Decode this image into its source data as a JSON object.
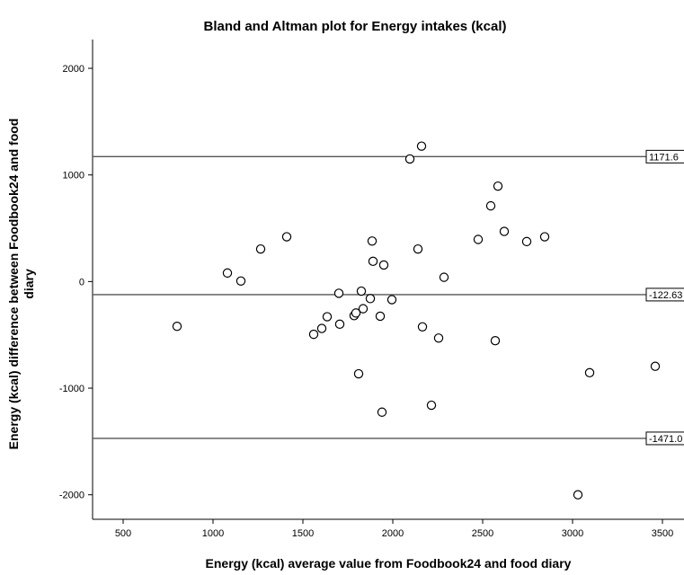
{
  "chart_data": {
    "type": "scatter",
    "title": "Bland and Altman plot for Energy intakes (kcal)",
    "xlabel": "Energy (kcal) average value from Foodbook24 and food diary",
    "ylabel_lines": [
      "Energy (kcal) difference between Foodbook24 and food",
      "diary"
    ],
    "xlim": [
      330,
      3620
    ],
    "ylim": [
      -2230,
      2270
    ],
    "xticks": [
      500,
      1000,
      1500,
      2000,
      2500,
      3000,
      3500
    ],
    "yticks": [
      -2000,
      -1000,
      0,
      1000,
      2000
    ],
    "grid": false,
    "reference_lines": [
      {
        "y": 1171.6,
        "label": "1171.6"
      },
      {
        "y": -122.63,
        "label": "-122.63"
      },
      {
        "y": -1471.0,
        "label": "-1471.0"
      }
    ],
    "points": [
      {
        "x": 800,
        "y": -420
      },
      {
        "x": 1080,
        "y": 80
      },
      {
        "x": 1155,
        "y": 5
      },
      {
        "x": 1265,
        "y": 305
      },
      {
        "x": 1410,
        "y": 420
      },
      {
        "x": 1560,
        "y": -495
      },
      {
        "x": 1605,
        "y": -440
      },
      {
        "x": 1635,
        "y": -330
      },
      {
        "x": 1700,
        "y": -110
      },
      {
        "x": 1705,
        "y": -400
      },
      {
        "x": 1785,
        "y": -320
      },
      {
        "x": 1795,
        "y": -295
      },
      {
        "x": 1810,
        "y": -865
      },
      {
        "x": 1825,
        "y": -90
      },
      {
        "x": 1835,
        "y": -255
      },
      {
        "x": 1875,
        "y": -160
      },
      {
        "x": 1885,
        "y": 380
      },
      {
        "x": 1890,
        "y": 190
      },
      {
        "x": 1930,
        "y": -325
      },
      {
        "x": 1940,
        "y": -1225
      },
      {
        "x": 1950,
        "y": 155
      },
      {
        "x": 1995,
        "y": -170
      },
      {
        "x": 2095,
        "y": 1150
      },
      {
        "x": 2140,
        "y": 305
      },
      {
        "x": 2160,
        "y": 1270
      },
      {
        "x": 2165,
        "y": -425
      },
      {
        "x": 2215,
        "y": -1160
      },
      {
        "x": 2255,
        "y": -530
      },
      {
        "x": 2285,
        "y": 40
      },
      {
        "x": 2475,
        "y": 395
      },
      {
        "x": 2545,
        "y": 710
      },
      {
        "x": 2570,
        "y": -555
      },
      {
        "x": 2585,
        "y": 895
      },
      {
        "x": 2620,
        "y": 470
      },
      {
        "x": 2745,
        "y": 375
      },
      {
        "x": 2845,
        "y": 420
      },
      {
        "x": 3030,
        "y": -2000
      },
      {
        "x": 3095,
        "y": -855
      },
      {
        "x": 3460,
        "y": -795
      }
    ]
  }
}
